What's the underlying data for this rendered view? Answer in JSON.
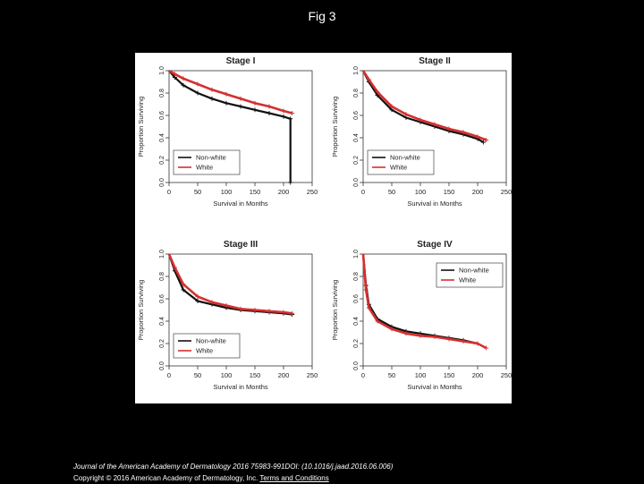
{
  "slide": {
    "title": "Fig 3"
  },
  "footer": {
    "journal": "Journal of the American Academy of Dermatology 2016 75983-991DOI: (10.1016/j.jaad.2016.06.006)",
    "copyright": "Copyright © 2016 American Academy of Dermatology, Inc.",
    "terms_link": "Terms and Conditions"
  },
  "colors": {
    "nonwhite": "#111111",
    "white": "#d62f2f"
  },
  "chart_data": [
    {
      "type": "line",
      "title": "Stage I",
      "xlabel": "Survival in Months",
      "ylabel": "Proportion Surviving",
      "xlim": [
        0,
        250
      ],
      "ylim": [
        0,
        1.0
      ],
      "xticks": [
        "0",
        "50",
        "100",
        "150",
        "200",
        "250"
      ],
      "yticks": [
        "0.0",
        "0.2",
        "0.4",
        "0.6",
        "0.8",
        "1.0"
      ],
      "legend_position": "bottom-left",
      "series": [
        {
          "name": "Non-white",
          "x": [
            0,
            10,
            25,
            50,
            75,
            100,
            125,
            150,
            175,
            200,
            212,
            212
          ],
          "y": [
            1.0,
            0.94,
            0.87,
            0.8,
            0.75,
            0.71,
            0.68,
            0.65,
            0.62,
            0.59,
            0.57,
            0.0
          ]
        },
        {
          "name": "White",
          "x": [
            0,
            10,
            25,
            50,
            75,
            100,
            125,
            150,
            175,
            200,
            215
          ],
          "y": [
            1.0,
            0.97,
            0.93,
            0.88,
            0.83,
            0.79,
            0.75,
            0.71,
            0.68,
            0.64,
            0.62
          ]
        }
      ]
    },
    {
      "type": "line",
      "title": "Stage II",
      "xlabel": "Survival in Months",
      "ylabel": "Proportion Surviving",
      "xlim": [
        0,
        250
      ],
      "ylim": [
        0,
        1.0
      ],
      "xticks": [
        "0",
        "50",
        "100",
        "150",
        "200",
        "250"
      ],
      "yticks": [
        "0.0",
        "0.2",
        "0.4",
        "0.6",
        "0.8",
        "1.0"
      ],
      "legend_position": "bottom-left",
      "series": [
        {
          "name": "Non-white",
          "x": [
            0,
            10,
            25,
            50,
            75,
            100,
            125,
            150,
            175,
            200,
            210
          ],
          "y": [
            1.0,
            0.9,
            0.78,
            0.65,
            0.58,
            0.54,
            0.5,
            0.46,
            0.43,
            0.39,
            0.36
          ]
        },
        {
          "name": "White",
          "x": [
            0,
            10,
            25,
            50,
            75,
            100,
            125,
            150,
            175,
            200,
            215
          ],
          "y": [
            1.0,
            0.92,
            0.81,
            0.68,
            0.61,
            0.56,
            0.52,
            0.48,
            0.45,
            0.41,
            0.38
          ]
        }
      ]
    },
    {
      "type": "line",
      "title": "Stage III",
      "xlabel": "Survival in Months",
      "ylabel": "Proportion Surviving",
      "xlim": [
        0,
        250
      ],
      "ylim": [
        0,
        1.0
      ],
      "xticks": [
        "0",
        "50",
        "100",
        "150",
        "200",
        "250"
      ],
      "yticks": [
        "0.0",
        "0.2",
        "0.4",
        "0.6",
        "0.8",
        "1.0"
      ],
      "legend_position": "bottom-left",
      "series": [
        {
          "name": "Non-white",
          "x": [
            0,
            10,
            25,
            50,
            75,
            100,
            125,
            150,
            175,
            200,
            215
          ],
          "y": [
            1.0,
            0.85,
            0.68,
            0.58,
            0.55,
            0.52,
            0.5,
            0.49,
            0.48,
            0.47,
            0.46
          ]
        },
        {
          "name": "White",
          "x": [
            0,
            10,
            25,
            50,
            75,
            100,
            125,
            150,
            175,
            200,
            215
          ],
          "y": [
            1.0,
            0.88,
            0.73,
            0.62,
            0.57,
            0.54,
            0.51,
            0.5,
            0.49,
            0.48,
            0.47
          ]
        }
      ]
    },
    {
      "type": "line",
      "title": "Stage IV",
      "xlabel": "Survival in Months",
      "ylabel": "Proportion Surviving",
      "xlim": [
        0,
        250
      ],
      "ylim": [
        0,
        1.0
      ],
      "xticks": [
        "0",
        "50",
        "100",
        "150",
        "200",
        "250"
      ],
      "yticks": [
        "0.0",
        "0.2",
        "0.4",
        "0.6",
        "0.8",
        "1.0"
      ],
      "legend_position": "top-right",
      "series": [
        {
          "name": "Non-white",
          "x": [
            0,
            5,
            10,
            25,
            50,
            75,
            100,
            125,
            150,
            175,
            200
          ],
          "y": [
            1.0,
            0.72,
            0.55,
            0.42,
            0.35,
            0.31,
            0.29,
            0.27,
            0.25,
            0.23,
            0.2
          ]
        },
        {
          "name": "White",
          "x": [
            0,
            5,
            10,
            25,
            50,
            75,
            100,
            125,
            150,
            175,
            200,
            215
          ],
          "y": [
            1.0,
            0.68,
            0.52,
            0.4,
            0.33,
            0.29,
            0.27,
            0.26,
            0.24,
            0.22,
            0.2,
            0.16
          ]
        }
      ]
    }
  ]
}
